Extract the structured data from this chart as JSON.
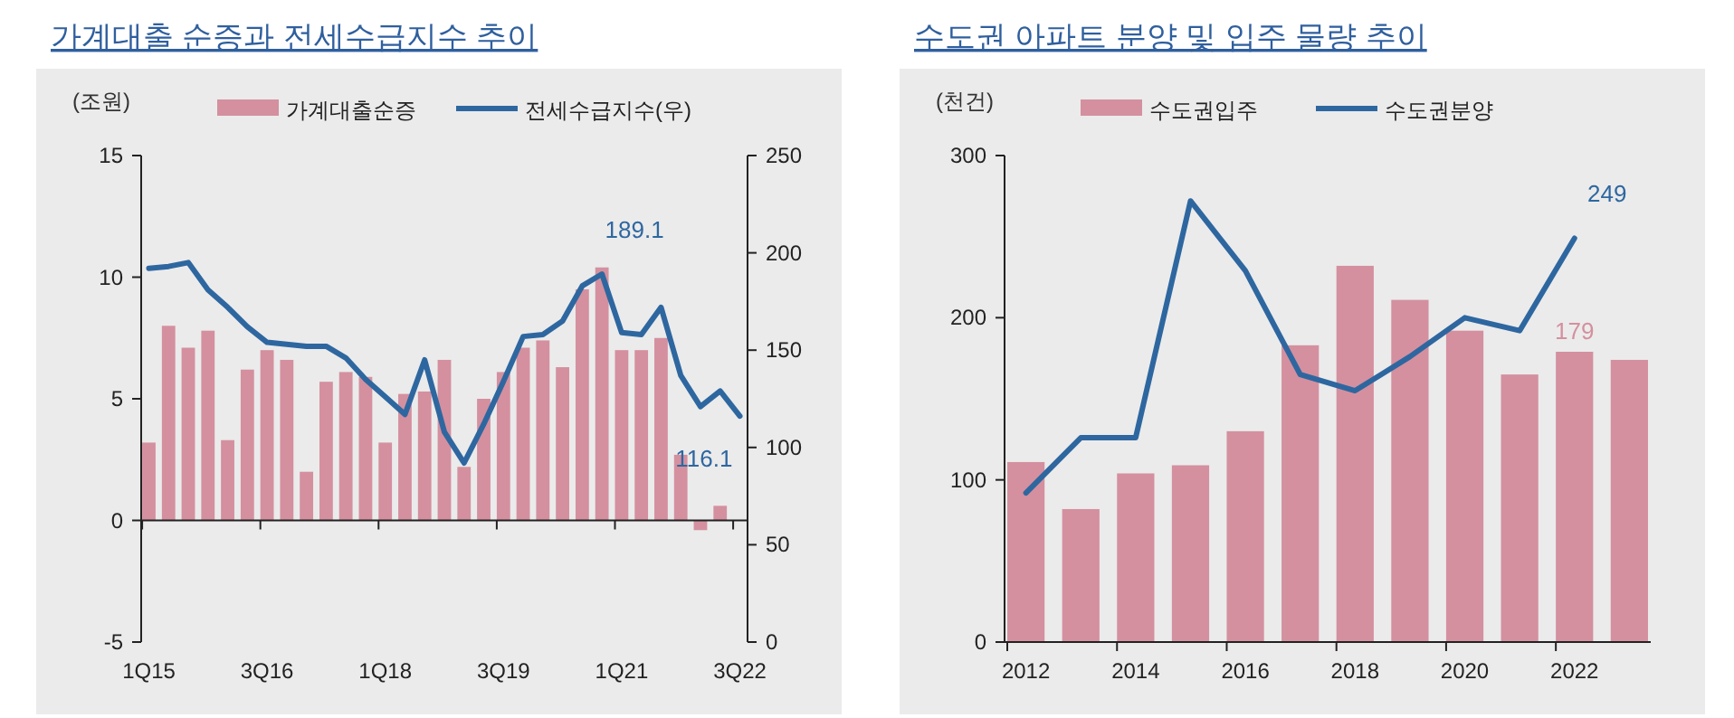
{
  "chart_data": [
    {
      "type": "bar",
      "title": "가계대출 순증과 전세수급지수 추이",
      "ylabel": "(조원)",
      "categories": [
        "1Q15",
        null,
        null,
        null,
        null,
        null,
        "3Q16",
        null,
        null,
        null,
        null,
        null,
        "1Q18",
        null,
        null,
        null,
        null,
        null,
        "3Q19",
        null,
        null,
        null,
        null,
        null,
        "1Q21",
        null,
        null,
        null,
        null,
        null,
        "3Q22"
      ],
      "series": [
        {
          "name": "가계대출순증",
          "color": "#d4909f",
          "values": [
            3.2,
            8.0,
            7.1,
            7.8,
            3.3,
            6.2,
            7.0,
            6.6,
            2.0,
            5.7,
            6.1,
            5.9,
            3.2,
            5.2,
            5.3,
            6.6,
            2.2,
            5.0,
            6.1,
            7.1,
            7.4,
            6.3,
            9.5,
            10.4,
            7.0,
            7.0,
            7.5,
            2.7,
            -0.4,
            0.6,
            null
          ]
        },
        {
          "name": "전세수급지수(우)",
          "type": "line",
          "axis": "y2",
          "color": "#2e67a0",
          "values": [
            192,
            193,
            195,
            181,
            172,
            162,
            154,
            153,
            152,
            152,
            146,
            135,
            126,
            117,
            145,
            108,
            92,
            112,
            134,
            157,
            158,
            165,
            183,
            189.1,
            159,
            158,
            172,
            137,
            121,
            129,
            116.1
          ],
          "value_labels": [
            null,
            null,
            null,
            null,
            null,
            null,
            null,
            null,
            null,
            null,
            null,
            null,
            null,
            null,
            null,
            null,
            null,
            null,
            null,
            null,
            null,
            null,
            null,
            "189.1",
            null,
            null,
            null,
            null,
            null,
            null,
            "116.1"
          ]
        }
      ],
      "ylim": [
        -5,
        15
      ],
      "yticks": [
        -5,
        0,
        5,
        10,
        15
      ],
      "y2lim": [
        0,
        250
      ],
      "y2ticks": [
        0,
        50,
        100,
        150,
        200,
        250
      ],
      "legend": "top"
    },
    {
      "type": "bar",
      "title": "수도권 아파트 분양 및 입주 물량 추이",
      "ylabel": "(천건)",
      "categories": [
        "2012",
        null,
        "2014",
        null,
        "2016",
        null,
        "2018",
        null,
        "2020",
        null,
        "2022",
        null
      ],
      "series": [
        {
          "name": "수도권입주",
          "color": "#d4909f",
          "values": [
            111,
            82,
            104,
            109,
            130,
            183,
            232,
            211,
            192,
            165,
            179,
            174
          ],
          "value_labels": [
            null,
            null,
            null,
            null,
            null,
            null,
            null,
            null,
            null,
            null,
            "179",
            null
          ]
        },
        {
          "name": "수도권분양",
          "type": "line",
          "color": "#2e67a0",
          "values": [
            92,
            126,
            126,
            272,
            229,
            165,
            155,
            176,
            200,
            192,
            249,
            null
          ],
          "value_labels": [
            null,
            null,
            null,
            null,
            null,
            null,
            null,
            null,
            null,
            null,
            "249",
            null
          ]
        }
      ],
      "ylim": [
        0,
        300
      ],
      "yticks": [
        0,
        100,
        200,
        300
      ],
      "legend": "top"
    }
  ]
}
